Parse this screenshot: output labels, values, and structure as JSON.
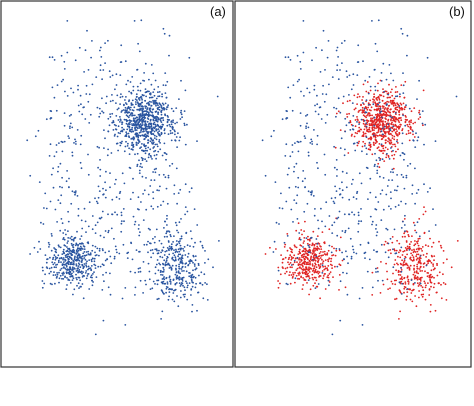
{
  "chart_data": [
    {
      "type": "scatter",
      "panel_label": "(a)",
      "grid": false,
      "legend": "none",
      "axes_ticks": "none",
      "series": [
        {
          "name": "",
          "color": "#2a55a0",
          "points": "generated-from-clusters"
        }
      ],
      "clusters": [
        {
          "cx": 0.62,
          "cy": 0.32,
          "sx": 0.13,
          "sy": 0.05,
          "n": 650,
          "class": "dense"
        },
        {
          "cx": 0.3,
          "cy": 0.72,
          "sx": 0.12,
          "sy": 0.045,
          "n": 380,
          "class": "dense"
        },
        {
          "cx": 0.77,
          "cy": 0.74,
          "sx": 0.13,
          "sy": 0.06,
          "n": 330,
          "class": "dense"
        },
        {
          "cx": 0.5,
          "cy": 0.45,
          "sx": 0.3,
          "sy": 0.3,
          "n": 520,
          "class": "background"
        }
      ]
    },
    {
      "type": "scatter",
      "panel_label": "(b)",
      "grid": false,
      "legend": "none",
      "axes_ticks": "none",
      "series": [
        {
          "name": "",
          "color": "#e02424",
          "points": "dense-clusters"
        },
        {
          "name": "",
          "color": "#2a55a0",
          "points": "background"
        }
      ],
      "clusters": [
        {
          "cx": 0.62,
          "cy": 0.32,
          "sx": 0.13,
          "sy": 0.05,
          "n": 650,
          "class": "dense"
        },
        {
          "cx": 0.3,
          "cy": 0.72,
          "sx": 0.12,
          "sy": 0.045,
          "n": 380,
          "class": "dense"
        },
        {
          "cx": 0.77,
          "cy": 0.74,
          "sx": 0.13,
          "sy": 0.06,
          "n": 330,
          "class": "dense"
        },
        {
          "cx": 0.5,
          "cy": 0.45,
          "sx": 0.3,
          "sy": 0.3,
          "n": 520,
          "class": "background"
        }
      ]
    }
  ]
}
